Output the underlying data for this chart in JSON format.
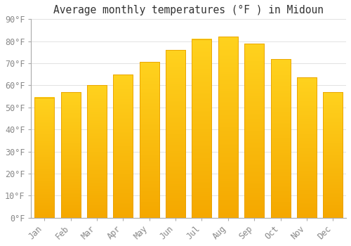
{
  "title": "Average monthly temperatures (°F ) in Midoun",
  "months": [
    "Jan",
    "Feb",
    "Mar",
    "Apr",
    "May",
    "Jun",
    "Jul",
    "Aug",
    "Sep",
    "Oct",
    "Nov",
    "Dec"
  ],
  "values": [
    54.5,
    57,
    60,
    65,
    70.5,
    76,
    81,
    82,
    79,
    72,
    63.5,
    57
  ],
  "bar_color_top": "#FFCC00",
  "bar_color_bottom": "#F5A800",
  "bar_edge_color": "#E8A000",
  "background_color": "#FFFFFF",
  "grid_color": "#DDDDDD",
  "ylim": [
    0,
    90
  ],
  "yticks": [
    0,
    10,
    20,
    30,
    40,
    50,
    60,
    70,
    80,
    90
  ],
  "title_fontsize": 10.5,
  "tick_fontsize": 8.5,
  "tick_color": "#888888",
  "font_family": "monospace",
  "bar_width": 0.75
}
